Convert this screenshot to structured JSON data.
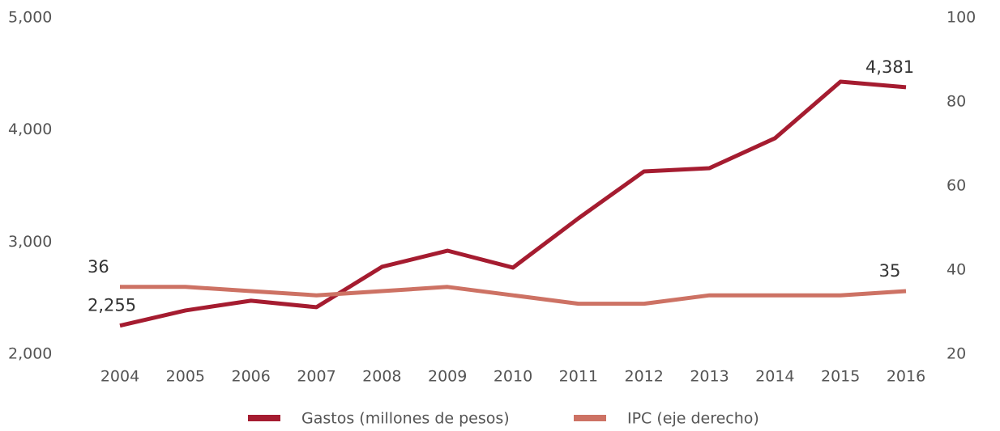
{
  "chart_data": {
    "type": "line",
    "categories": [
      "2004",
      "2005",
      "2006",
      "2007",
      "2008",
      "2009",
      "2010",
      "2011",
      "2012",
      "2013",
      "2014",
      "2015",
      "2016"
    ],
    "series": [
      {
        "name": "Gastos (millones de pesos)",
        "color": "#a51c30",
        "values": [
          2255,
          2390,
          2477,
          2419,
          2779,
          2923,
          2772,
          3212,
          3630,
          3659,
          3926,
          4430,
          4381
        ],
        "value_labels": [
          "2,255",
          null,
          null,
          null,
          null,
          null,
          null,
          null,
          null,
          null,
          null,
          null,
          "4,381"
        ]
      },
      {
        "name": "IPC (eje derecho)",
        "color": "#cd7264",
        "axis": "y2",
        "values": [
          36,
          36,
          35,
          34,
          35,
          36,
          34,
          32,
          32,
          34,
          34,
          34,
          35
        ],
        "value_labels": [
          "36",
          null,
          null,
          null,
          null,
          null,
          null,
          null,
          null,
          null,
          null,
          null,
          "35"
        ]
      }
    ],
    "ylim": [
      2000,
      5000
    ],
    "yticks": [
      {
        "value": 2000,
        "label": "2,000"
      },
      {
        "value": 3000,
        "label": "3,000"
      },
      {
        "value": 4000,
        "label": "4,000"
      },
      {
        "value": 5000,
        "label": "5,000"
      }
    ],
    "y2lim": [
      20,
      100
    ],
    "y2ticks": [
      20,
      40,
      60,
      80,
      100
    ],
    "legend": "bottom"
  }
}
